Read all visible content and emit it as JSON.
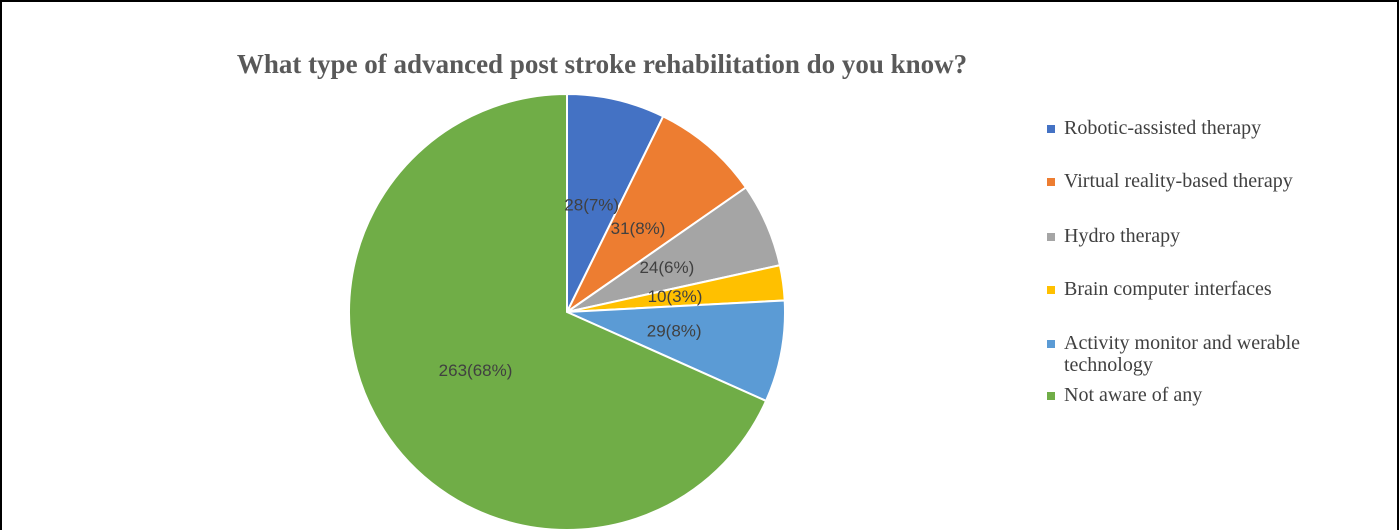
{
  "chart_data": {
    "type": "pie",
    "title": "What type of advanced post stroke rehabilitation do you know?",
    "categories": [
      "Robotic-assisted therapy",
      "Virtual reality-based therapy",
      "Hydro therapy",
      "Brain computer interfaces",
      "Activity monitor and werable technology",
      "Not aware of any"
    ],
    "values": [
      28,
      31,
      24,
      10,
      29,
      263
    ],
    "value_labels": [
      "28(7%)",
      "31(8%)",
      "24(6%)",
      "10(3%)",
      "29(8%)",
      "263(68%)"
    ],
    "colors": [
      "#4472c4",
      "#ed7d31",
      "#a5a5a5",
      "#ffc000",
      "#5b9bd5",
      "#70ad47"
    ],
    "legend": "right"
  }
}
